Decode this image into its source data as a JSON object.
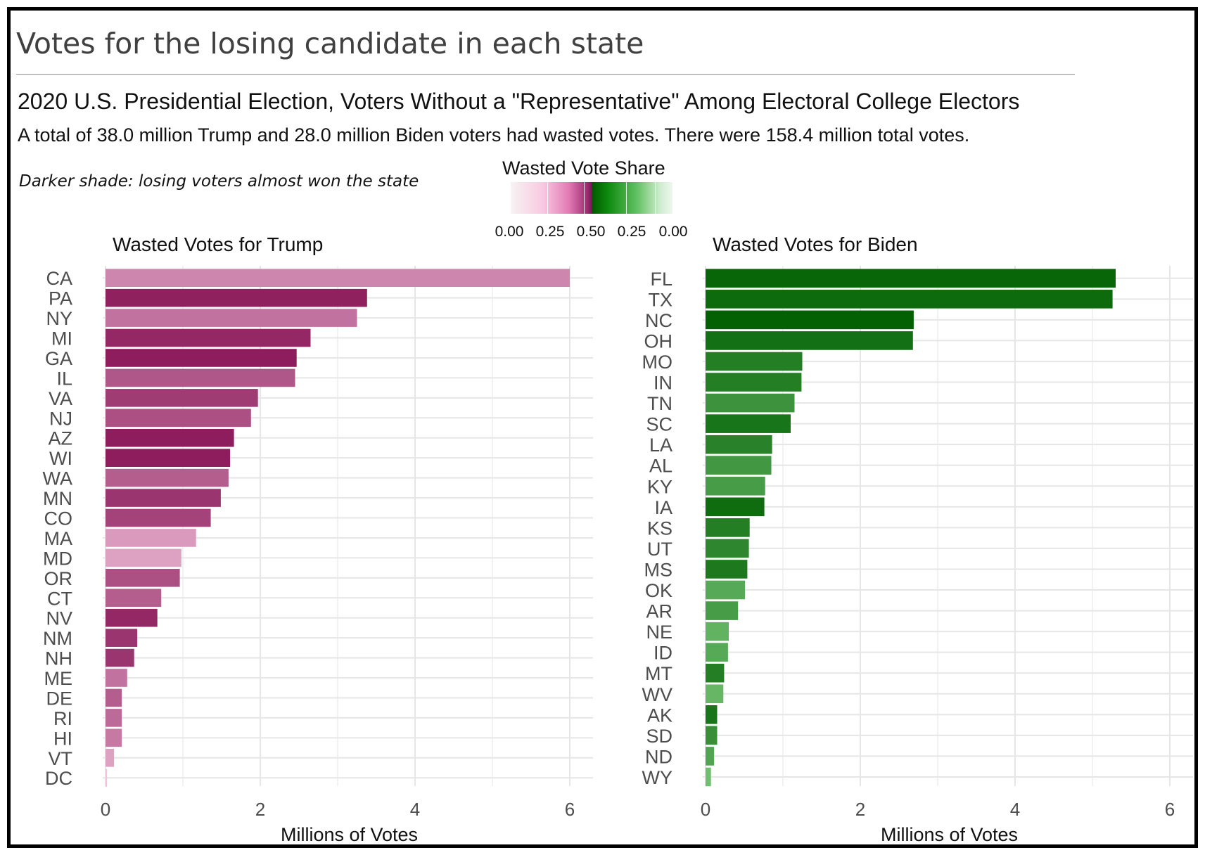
{
  "main_title": "Votes for the losing candidate in each state",
  "subtitle": "2020 U.S. Presidential Election, Voters Without a \"Representative\" Among Electoral College Electors",
  "summary": "A total of 38.0 million Trump and 28.0 million Biden voters had wasted votes. There were 158.4 million total votes.",
  "note": "Darker shade: losing voters almost won the state",
  "legend": {
    "title": "Wasted Vote Share",
    "ticks": [
      "0.00",
      "0.25",
      "0.50",
      "0.25",
      "0.00"
    ]
  },
  "colors": {
    "trump_low": "#f2c3dc",
    "trump_high": "#8b1a5a",
    "biden_low": "#7fcc7f",
    "biden_high": "#005f00",
    "grid": "#e6e6e6",
    "border": "#000000"
  },
  "chart_data": [
    {
      "type": "bar",
      "orientation": "horizontal",
      "title": "Wasted Votes for Trump",
      "xlabel": "Millions of Votes",
      "xlim": [
        0,
        6.3
      ],
      "xticks": [
        0,
        2,
        4,
        6
      ],
      "grid": true,
      "categories": [
        "CA",
        "PA",
        "NY",
        "MI",
        "GA",
        "IL",
        "VA",
        "NJ",
        "AZ",
        "WI",
        "WA",
        "MN",
        "CO",
        "MA",
        "MD",
        "OR",
        "CT",
        "NV",
        "NM",
        "NH",
        "ME",
        "DE",
        "RI",
        "HI",
        "VT",
        "DC"
      ],
      "values": [
        6.0,
        3.38,
        3.25,
        2.65,
        2.47,
        2.45,
        1.97,
        1.88,
        1.66,
        1.61,
        1.59,
        1.49,
        1.36,
        1.17,
        0.98,
        0.96,
        0.72,
        0.67,
        0.41,
        0.37,
        0.28,
        0.21,
        0.21,
        0.21,
        0.11,
        0.02
      ],
      "shade": [
        0.34,
        0.49,
        0.37,
        0.48,
        0.495,
        0.41,
        0.45,
        0.42,
        0.495,
        0.495,
        0.4,
        0.46,
        0.44,
        0.31,
        0.3,
        0.42,
        0.4,
        0.48,
        0.46,
        0.46,
        0.37,
        0.4,
        0.38,
        0.36,
        0.3,
        0.05
      ]
    },
    {
      "type": "bar",
      "orientation": "horizontal",
      "title": "Wasted Votes for Biden",
      "xlabel": "Millions of Votes",
      "xlim": [
        0,
        6.3
      ],
      "xticks": [
        0,
        2,
        4,
        6
      ],
      "grid": true,
      "categories": [
        "FL",
        "TX",
        "NC",
        "OH",
        "MO",
        "IN",
        "TN",
        "SC",
        "LA",
        "AL",
        "KY",
        "IA",
        "KS",
        "UT",
        "MS",
        "OK",
        "AR",
        "NE",
        "ID",
        "MT",
        "WV",
        "AK",
        "SD",
        "ND",
        "WY"
      ],
      "values": [
        5.3,
        5.26,
        2.69,
        2.68,
        1.25,
        1.24,
        1.15,
        1.1,
        0.86,
        0.85,
        0.77,
        0.76,
        0.57,
        0.56,
        0.54,
        0.51,
        0.42,
        0.3,
        0.29,
        0.24,
        0.23,
        0.15,
        0.15,
        0.11,
        0.07
      ],
      "shade": [
        0.485,
        0.475,
        0.495,
        0.46,
        0.43,
        0.43,
        0.38,
        0.45,
        0.42,
        0.37,
        0.36,
        0.47,
        0.43,
        0.41,
        0.44,
        0.33,
        0.36,
        0.31,
        0.33,
        0.43,
        0.3,
        0.45,
        0.39,
        0.34,
        0.28
      ]
    }
  ]
}
